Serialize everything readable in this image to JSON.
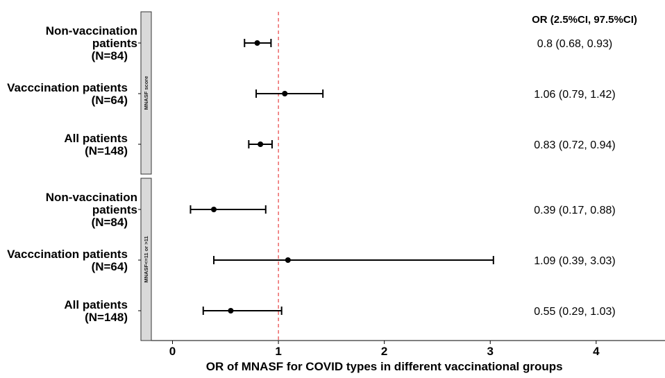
{
  "chart_data": {
    "type": "forest",
    "xlabel": "OR of MNASF for COVID types in different vaccinational groups",
    "xlim": [
      -0.2,
      4.65
    ],
    "xticks": [
      0,
      1,
      2,
      3,
      4
    ],
    "reference_line": 1,
    "reference_line_color": "#e41a1c",
    "ci_header": "OR (2.5%CI, 97.5%CI)",
    "panels": [
      {
        "strip_label": "MNASF score",
        "rows": [
          {
            "label": [
              "Non-vaccination",
              "patients",
              "(N=84)"
            ],
            "or": 0.8,
            "lo": 0.68,
            "hi": 0.93,
            "ci_text": "0.8 (0.68, 0.93)"
          },
          {
            "label": [
              "Vacccination patients",
              "(N=64)"
            ],
            "or": 1.06,
            "lo": 0.79,
            "hi": 1.42,
            "ci_text": "1.06 (0.79, 1.42)"
          },
          {
            "label": [
              "All patients",
              "(N=148)"
            ],
            "or": 0.83,
            "lo": 0.72,
            "hi": 0.94,
            "ci_text": "0.83 (0.72, 0.94)"
          }
        ]
      },
      {
        "strip_label": "MNASF<=11 or >11",
        "rows": [
          {
            "label": [
              "Non-vaccination",
              "patients",
              "(N=84)"
            ],
            "or": 0.39,
            "lo": 0.17,
            "hi": 0.88,
            "ci_text": "0.39 (0.17, 0.88)"
          },
          {
            "label": [
              "Vacccination patients",
              "(N=64)"
            ],
            "or": 1.09,
            "lo": 0.39,
            "hi": 3.03,
            "ci_text": "1.09 (0.39, 3.03)"
          },
          {
            "label": [
              "All patients",
              "(N=148)"
            ],
            "or": 0.55,
            "lo": 0.29,
            "hi": 1.03,
            "ci_text": "0.55 (0.29, 1.03)"
          }
        ]
      }
    ]
  }
}
